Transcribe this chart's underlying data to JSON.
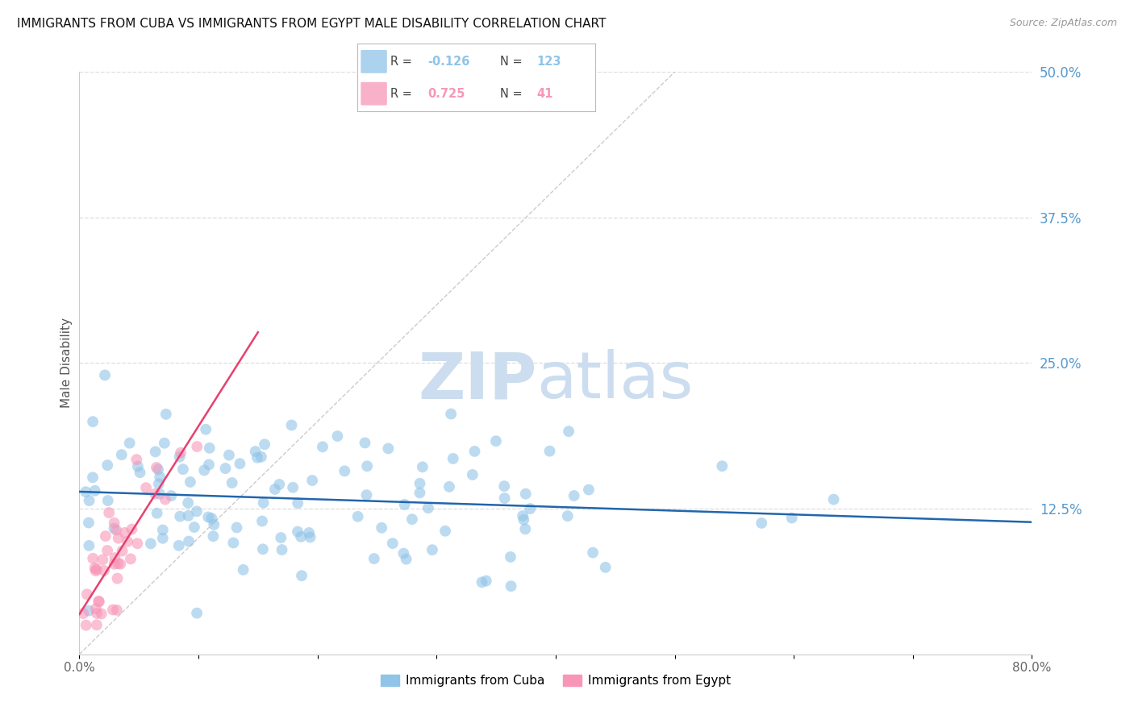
{
  "title": "IMMIGRANTS FROM CUBA VS IMMIGRANTS FROM EGYPT MALE DISABILITY CORRELATION CHART",
  "source": "Source: ZipAtlas.com",
  "ylabel": "Male Disability",
  "xlim": [
    0.0,
    0.8
  ],
  "ylim": [
    0.0,
    0.5
  ],
  "yticks_right": [
    0.125,
    0.25,
    0.375,
    0.5
  ],
  "ytick_right_labels": [
    "12.5%",
    "25.0%",
    "37.5%",
    "50.0%"
  ],
  "cuba_color": "#90c4e8",
  "egypt_color": "#f896b8",
  "cuba_R": -0.126,
  "cuba_N": 123,
  "egypt_R": 0.725,
  "egypt_N": 41,
  "legend_label_cuba": "Immigrants from Cuba",
  "legend_label_egypt": "Immigrants from Egypt",
  "watermark_zip": "ZIP",
  "watermark_atlas": "atlas",
  "watermark_color": "#ccddef",
  "grid_color": "#dddddd",
  "title_color": "#111111",
  "right_axis_color": "#5599cc",
  "cuba_line_color": "#2166ac",
  "egypt_line_color": "#e8406e",
  "diag_color": "#cccccc",
  "seed": 7
}
